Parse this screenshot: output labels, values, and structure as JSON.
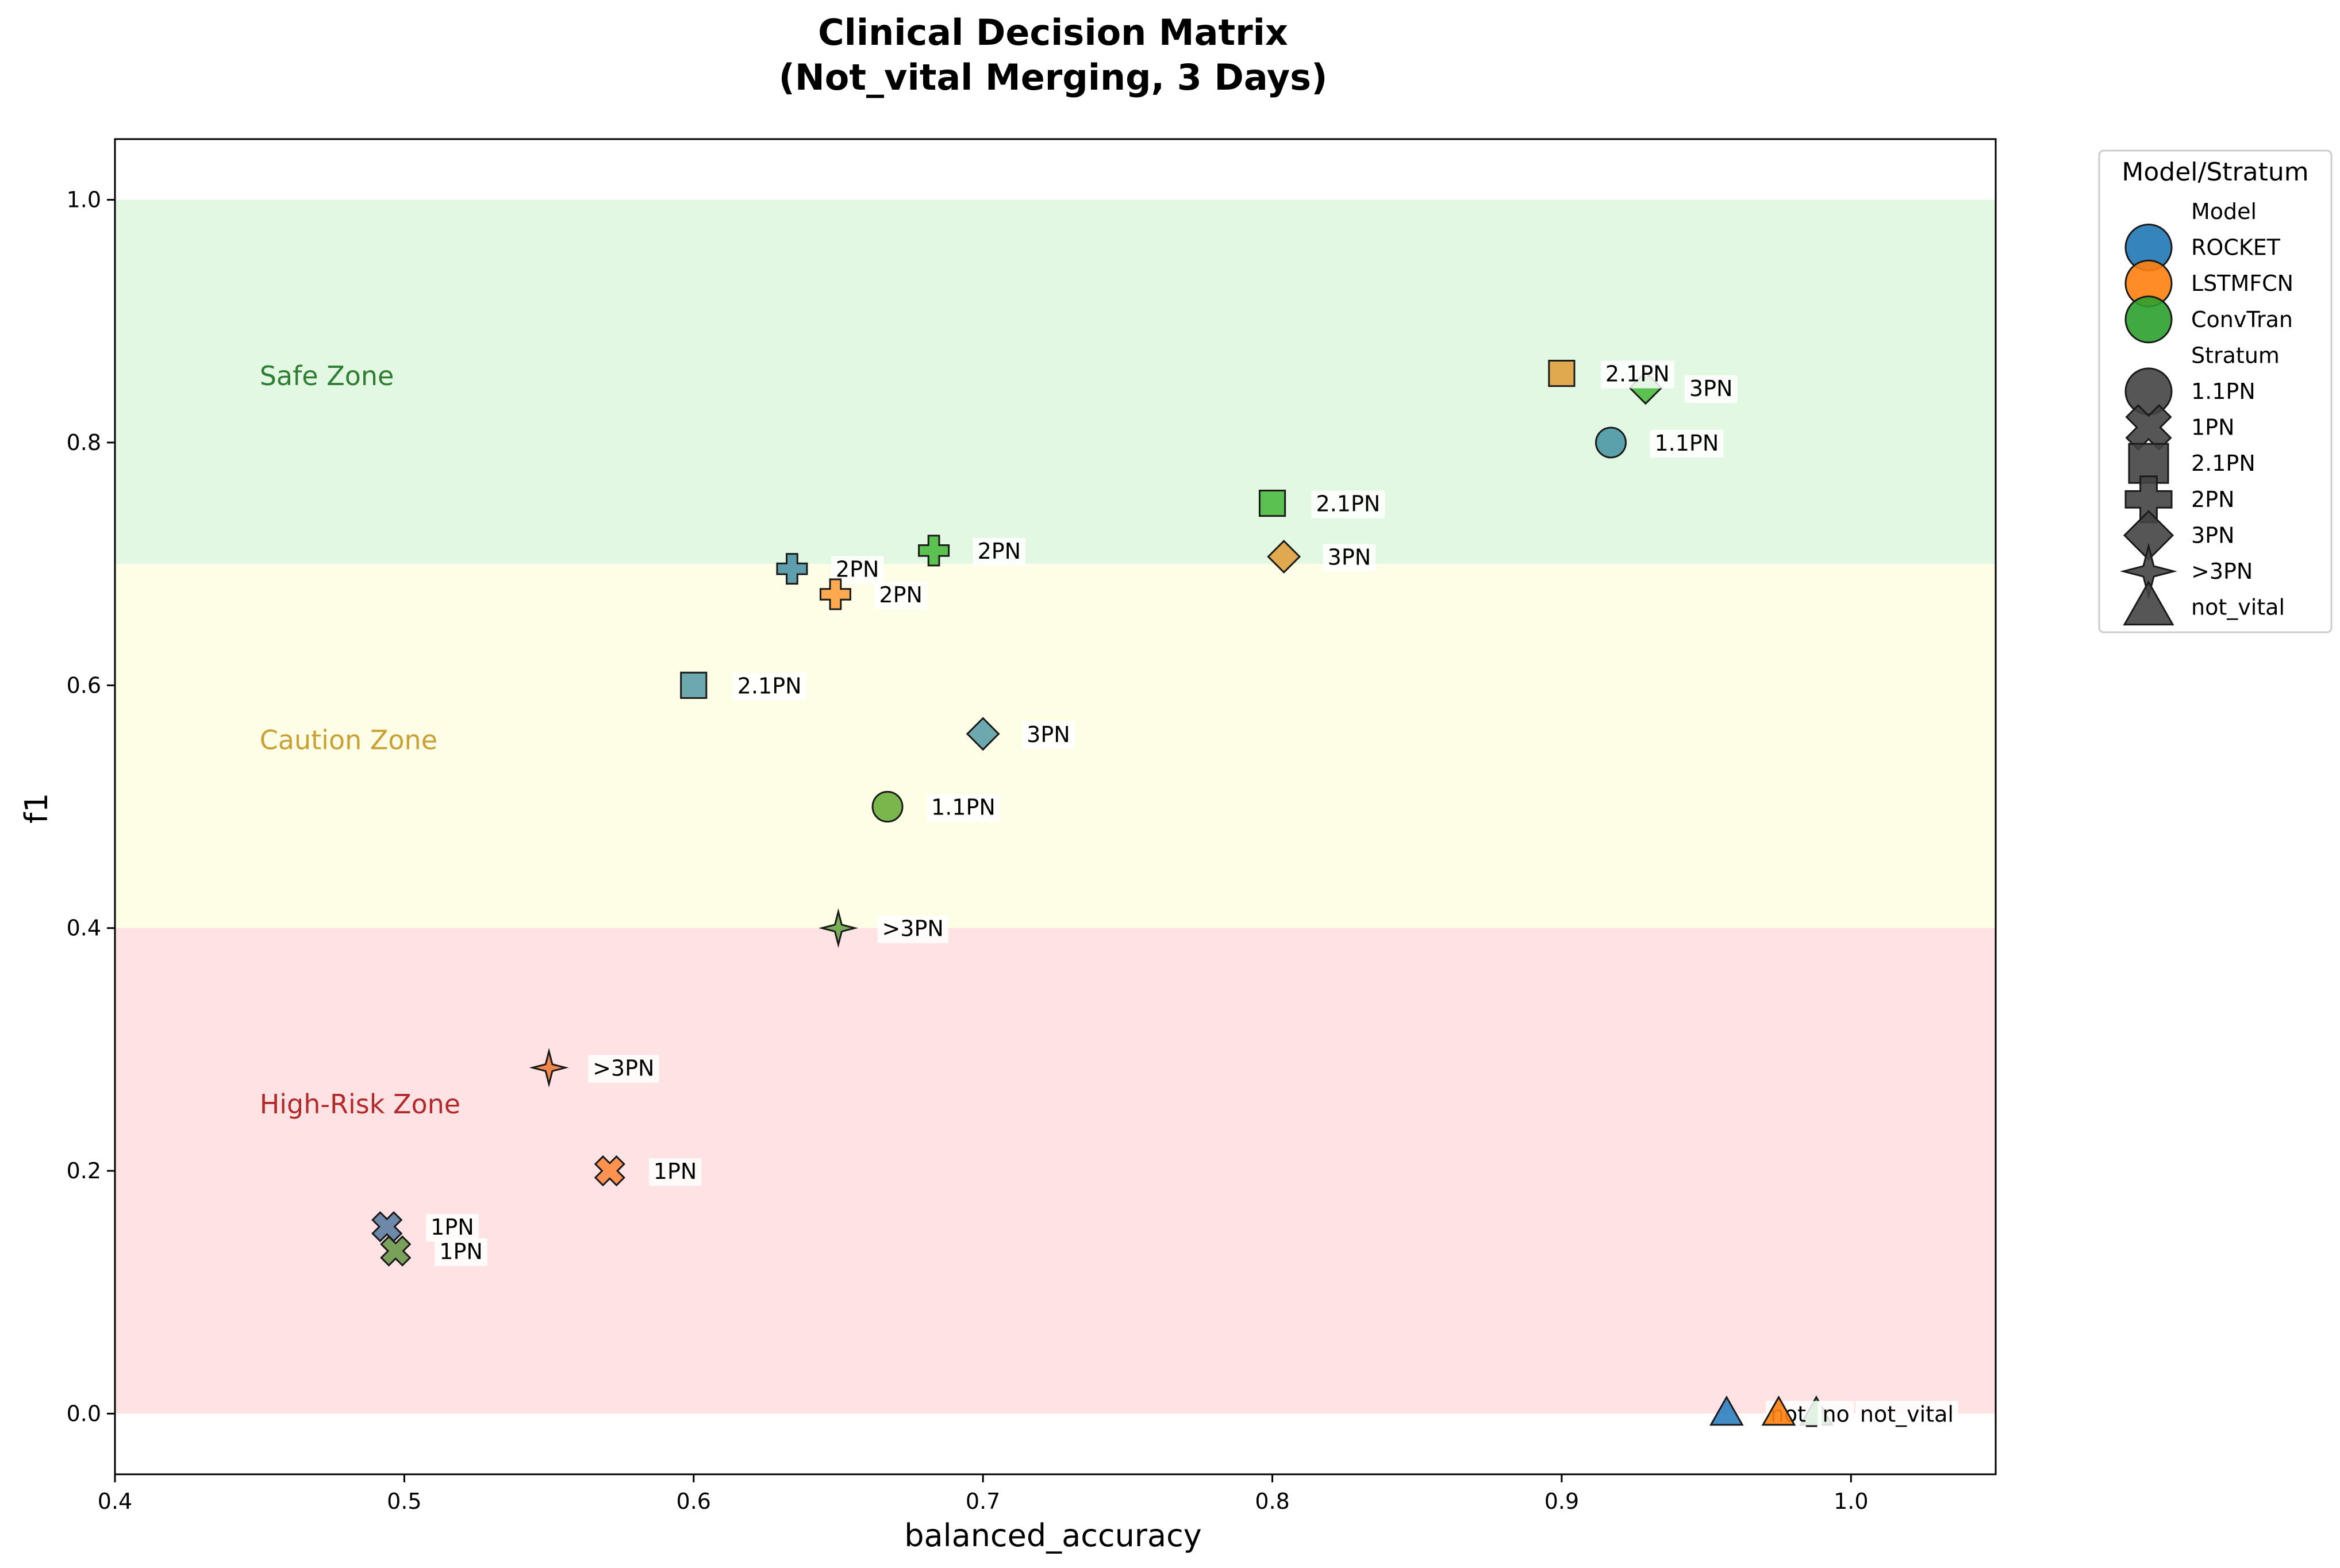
{
  "chart_data": {
    "type": "scatter",
    "title_lines": [
      "Clinical Decision Matrix",
      "(Not_vital Merging, 3 Days)"
    ],
    "xlabel": "balanced_accuracy",
    "ylabel": "f1",
    "xlim": [
      0.4,
      1.05
    ],
    "ylim": [
      -0.05,
      1.05
    ],
    "x_ticks": [
      0.4,
      0.5,
      0.6,
      0.7,
      0.8,
      0.9,
      1.0
    ],
    "x_tick_labels": [
      "0.4",
      "0.5",
      "0.6",
      "0.7",
      "0.8",
      "0.9",
      "1.0"
    ],
    "y_ticks": [
      0.0,
      0.2,
      0.4,
      0.6,
      0.8,
      1.0
    ],
    "y_tick_labels": [
      "0.0",
      "0.2",
      "0.4",
      "0.6",
      "0.8",
      "1.0"
    ],
    "grid": false,
    "zones": [
      {
        "label": "Safe Zone",
        "y0": 0.7,
        "y1": 1.0,
        "fill": "#e2f8e2",
        "text_color": "#2e7d32",
        "label_x": 0.45,
        "label_y": 0.855
      },
      {
        "label": "Caution Zone",
        "y0": 0.4,
        "y1": 0.7,
        "fill": "#fefee6",
        "text_color": "#c8a033",
        "label_x": 0.45,
        "label_y": 0.555
      },
      {
        "label": "High-Risk Zone",
        "y0": 0.0,
        "y1": 0.4,
        "fill": "#ffe2e4",
        "text_color": "#b22a2a",
        "label_x": 0.45,
        "label_y": 0.255
      }
    ],
    "model_colors": {
      "ROCKET": "#1f77b4",
      "LSTMFCN": "#ff7f0e",
      "ConvTran": "#2ca02c"
    },
    "stratum_markers": {
      "1.1PN": "circle",
      "1PN": "x",
      "2.1PN": "square",
      "2PN": "plus",
      "3PN": "diamond",
      ">3PN": "star4",
      "not_vital": "triangle"
    },
    "points": [
      {
        "model": "ConvTran",
        "stratum": "2.1PN",
        "x": 0.8,
        "y": 0.75,
        "label": "2.1PN",
        "color": "#4cba40"
      },
      {
        "model": "ConvTran",
        "stratum": "2PN",
        "x": 0.683,
        "y": 0.711,
        "label": "2PN",
        "color": "#4cba40"
      },
      {
        "model": "ConvTran",
        "stratum": "1.1PN",
        "x": 0.667,
        "y": 0.5,
        "label": "1.1PN",
        "color": "#6aae3a"
      },
      {
        "model": "ConvTran",
        "stratum": ">3PN",
        "x": 0.65,
        "y": 0.4,
        "label": ">3PN",
        "color": "#6aa646"
      },
      {
        "model": "ConvTran",
        "stratum": "1PN",
        "x": 0.497,
        "y": 0.134,
        "label": "1PN",
        "color": "#6c9a4c"
      },
      {
        "model": "ConvTran",
        "stratum": "3PN",
        "x": 0.929,
        "y": 0.845,
        "label": "3PN",
        "color": "#4cba40"
      },
      {
        "model": "ConvTran",
        "stratum": "not_vital",
        "x": 0.988,
        "y": 0.0,
        "label": "not_vital",
        "color": "#2ca02c"
      },
      {
        "model": "ROCKET",
        "stratum": "1.1PN",
        "x": 0.917,
        "y": 0.8,
        "label": "1.1PN",
        "color": "#4b97a6"
      },
      {
        "model": "ROCKET",
        "stratum": "2PN",
        "x": 0.634,
        "y": 0.696,
        "label": "2PN",
        "color": "#4e95a6"
      },
      {
        "model": "ROCKET",
        "stratum": "2.1PN",
        "x": 0.6,
        "y": 0.6,
        "label": "2.1PN",
        "color": "#5c9ea6"
      },
      {
        "model": "ROCKET",
        "stratum": "3PN",
        "x": 0.7,
        "y": 0.56,
        "label": "3PN",
        "color": "#5c9ea6"
      },
      {
        "model": "ROCKET",
        "stratum": "1PN",
        "x": 0.494,
        "y": 0.154,
        "label": "1PN",
        "color": "#5e7ea2"
      },
      {
        "model": "ROCKET",
        "stratum": "not_vital",
        "x": 0.957,
        "y": 0.0,
        "label": "not_",
        "color": "#2e7fc0"
      },
      {
        "model": "LSTMFCN",
        "stratum": "2.1PN",
        "x": 0.9,
        "y": 0.857,
        "label": "2.1PN",
        "color": "#e0a040"
      },
      {
        "model": "LSTMFCN",
        "stratum": "3PN",
        "x": 0.804,
        "y": 0.706,
        "label": "3PN",
        "color": "#e0a040"
      },
      {
        "model": "LSTMFCN",
        "stratum": "2PN",
        "x": 0.649,
        "y": 0.675,
        "label": "2PN",
        "color": "#ffa040"
      },
      {
        "model": "LSTMFCN",
        "stratum": ">3PN",
        "x": 0.55,
        "y": 0.285,
        "label": ">3PN",
        "color": "#f07c3c"
      },
      {
        "model": "LSTMFCN",
        "stratum": "1PN",
        "x": 0.571,
        "y": 0.2,
        "label": "1PN",
        "color": "#ff8a40"
      },
      {
        "model": "LSTMFCN",
        "stratum": "not_vital",
        "x": 0.975,
        "y": 0.0,
        "label": "no",
        "color": "#ff7f0e"
      }
    ],
    "legend": {
      "title": "Model/Stratum",
      "placement": "outside-upper-right",
      "entries": [
        {
          "kind": "header",
          "text": "Model"
        },
        {
          "kind": "model",
          "text": "ROCKET",
          "color": "#1f77b4",
          "marker": "circle"
        },
        {
          "kind": "model",
          "text": "LSTMFCN",
          "color": "#ff7f0e",
          "marker": "circle"
        },
        {
          "kind": "model",
          "text": "ConvTran",
          "color": "#2ca02c",
          "marker": "circle"
        },
        {
          "kind": "header",
          "text": "Stratum"
        },
        {
          "kind": "stratum",
          "text": "1.1PN",
          "color": "#444444",
          "marker": "circle"
        },
        {
          "kind": "stratum",
          "text": "1PN",
          "color": "#444444",
          "marker": "x"
        },
        {
          "kind": "stratum",
          "text": "2.1PN",
          "color": "#444444",
          "marker": "square"
        },
        {
          "kind": "stratum",
          "text": "2PN",
          "color": "#444444",
          "marker": "plus"
        },
        {
          "kind": "stratum",
          "text": "3PN",
          "color": "#444444",
          "marker": "diamond"
        },
        {
          "kind": "stratum",
          "text": ">3PN",
          "color": "#444444",
          "marker": "star4"
        },
        {
          "kind": "stratum",
          "text": "not_vital",
          "color": "#444444",
          "marker": "triangle"
        }
      ]
    }
  }
}
